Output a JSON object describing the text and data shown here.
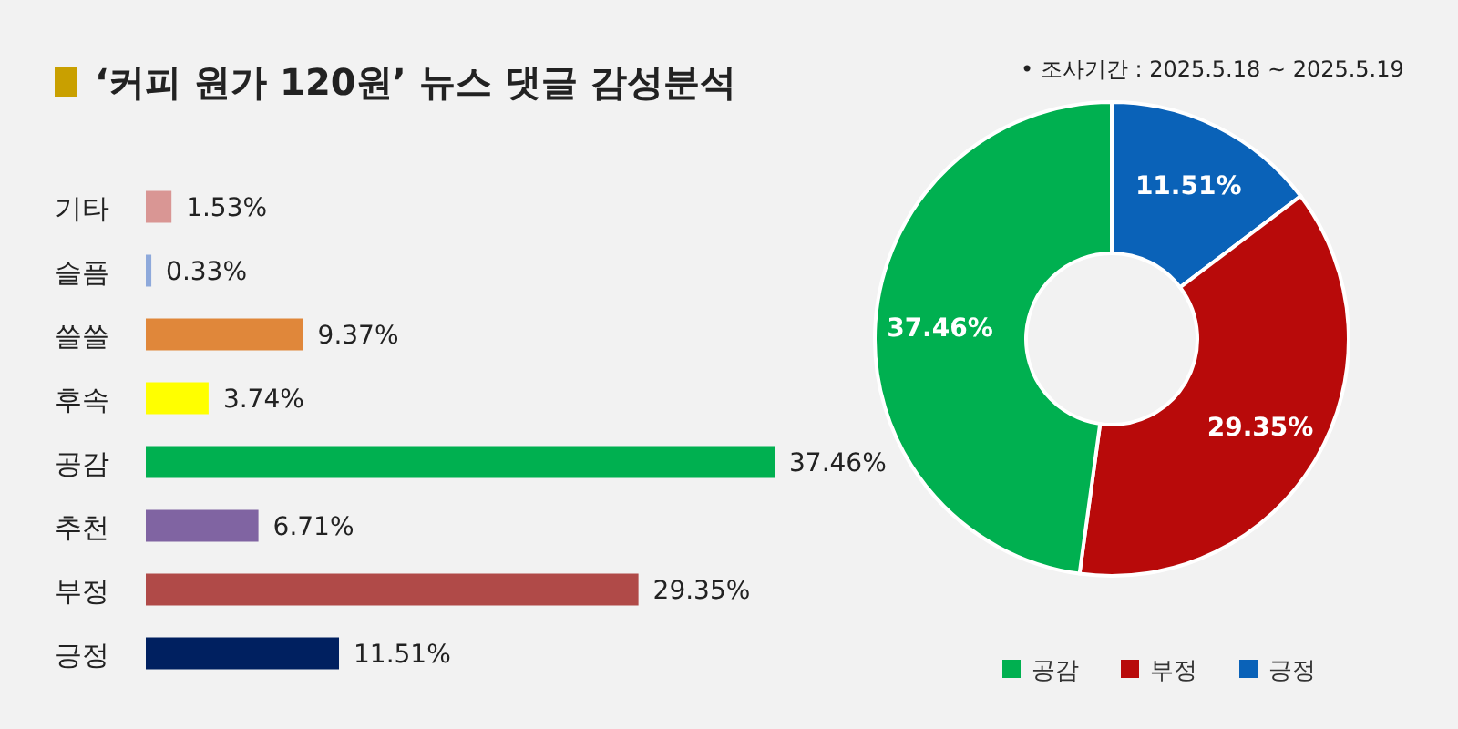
{
  "chart_data": [
    {
      "type": "bar",
      "orientation": "horizontal",
      "title": "‘커피 원가 120원’ 뉴스 댓글 감성분석",
      "categories": [
        "기타",
        "슬픔",
        "쓸쓸",
        "후속",
        "공감",
        "추천",
        "부정",
        "긍정"
      ],
      "values": [
        1.53,
        0.33,
        9.37,
        3.74,
        37.46,
        6.71,
        29.35,
        11.51
      ],
      "colors": [
        "#d99694",
        "#8ea9db",
        "#e0873a",
        "#ffff00",
        "#00b050",
        "#8064a2",
        "#b04a48",
        "#002060"
      ],
      "value_labels": [
        "1.53%",
        "0.33%",
        "9.37%",
        "3.74%",
        "37.46%",
        "6.71%",
        "29.35%",
        "11.51%"
      ]
    },
    {
      "type": "donut",
      "categories": [
        "긍정",
        "부정",
        "공감"
      ],
      "values": [
        11.51,
        29.35,
        37.46
      ],
      "colors": [
        "#0a62b8",
        "#b80a0a",
        "#00b050"
      ],
      "value_labels": [
        "11.51%",
        "29.35%",
        "37.46%"
      ],
      "legend": "bottom",
      "annotations": [
        "•   조사기간 : 2025.5.18 ~ 2025.5.19"
      ]
    }
  ]
}
